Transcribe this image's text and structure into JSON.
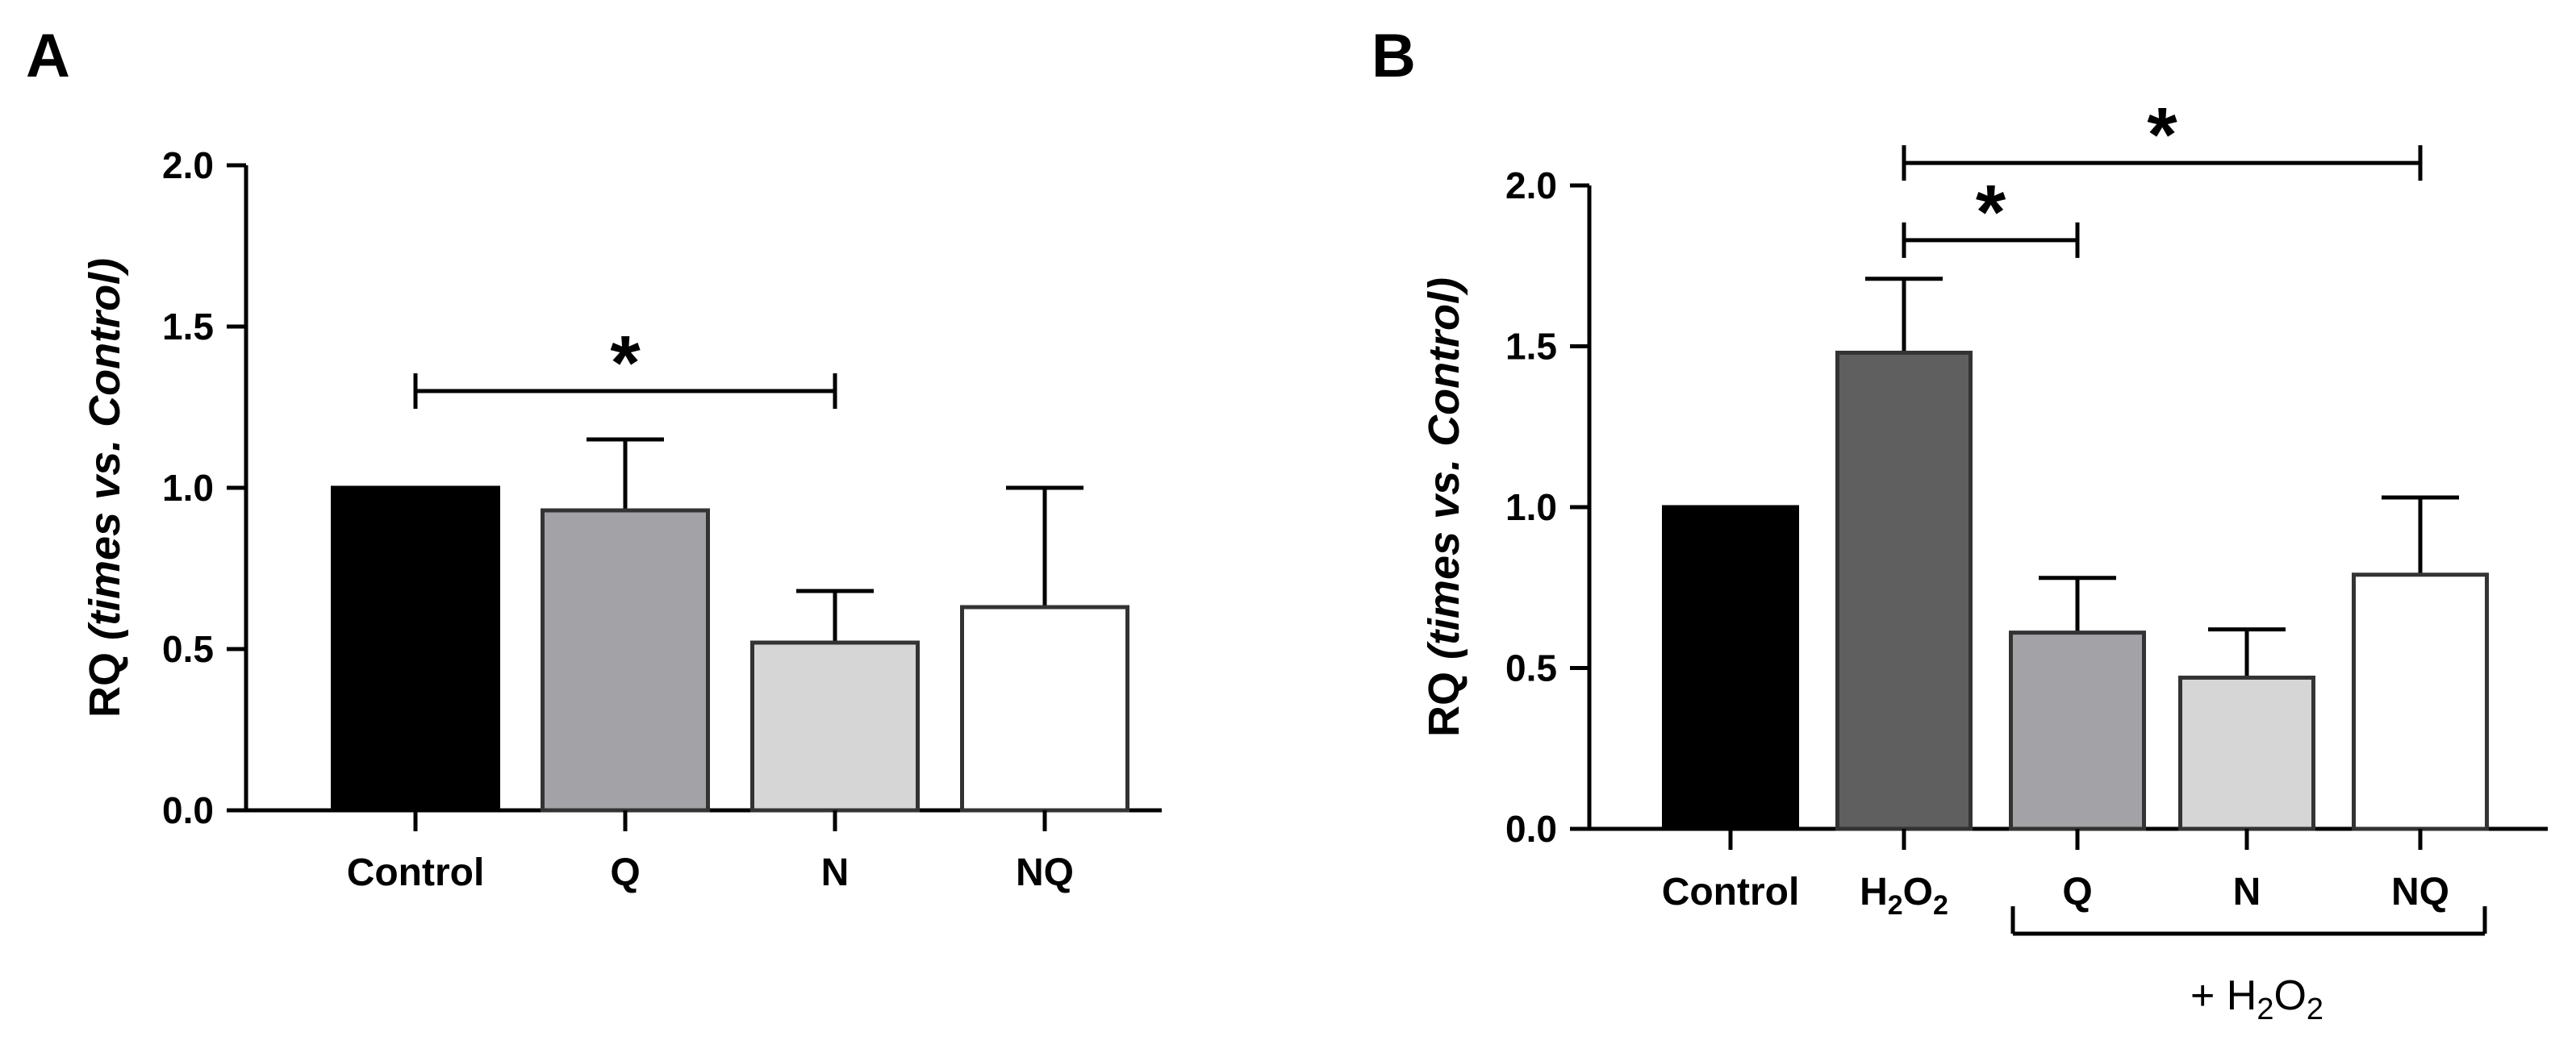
{
  "chart_data": [
    {
      "panel_label": "A",
      "type": "bar",
      "ylabel": "RQ",
      "ylabel_italic": "(times vs. Control)",
      "ylim": [
        0,
        2.0
      ],
      "yticks": [
        "0.0",
        "0.5",
        "1.0",
        "1.5",
        "2.0"
      ],
      "categories": [
        "Control",
        "Q",
        "N",
        "NQ"
      ],
      "values": [
        1.0,
        0.93,
        0.52,
        0.63
      ],
      "errors": [
        0,
        0.22,
        0.16,
        0.37
      ],
      "colors": [
        "#000000",
        "#a3a3a7",
        "#d6d6d6",
        "#ffffff"
      ],
      "significance": [
        {
          "from": "Control",
          "to": "N",
          "label": "*",
          "level": 1.3
        }
      ],
      "grid": false
    },
    {
      "panel_label": "B",
      "type": "bar",
      "ylabel": "RQ",
      "ylabel_italic": "(times vs. Control)",
      "ylim": [
        0,
        2.0
      ],
      "yticks": [
        "0.0",
        "0.5",
        "1.0",
        "1.5",
        "2.0"
      ],
      "categories": [
        "Control",
        "H2O2",
        "Q",
        "N",
        "NQ"
      ],
      "values": [
        1.0,
        1.48,
        0.61,
        0.47,
        0.79
      ],
      "errors": [
        0,
        0.23,
        0.17,
        0.15,
        0.24
      ],
      "colors": [
        "#000000",
        "#5f5f5f",
        "#a3a3a7",
        "#d6d6d6",
        "#ffffff"
      ],
      "significance": [
        {
          "from": "H2O2",
          "to": "Q",
          "label": "*",
          "level": 1.83
        },
        {
          "from": "H2O2",
          "to": "NQ",
          "label": "*",
          "level": 2.07
        }
      ],
      "group_bracket": {
        "from": "Q",
        "to": "NQ",
        "label": "+ H2O2"
      },
      "grid": false
    }
  ]
}
